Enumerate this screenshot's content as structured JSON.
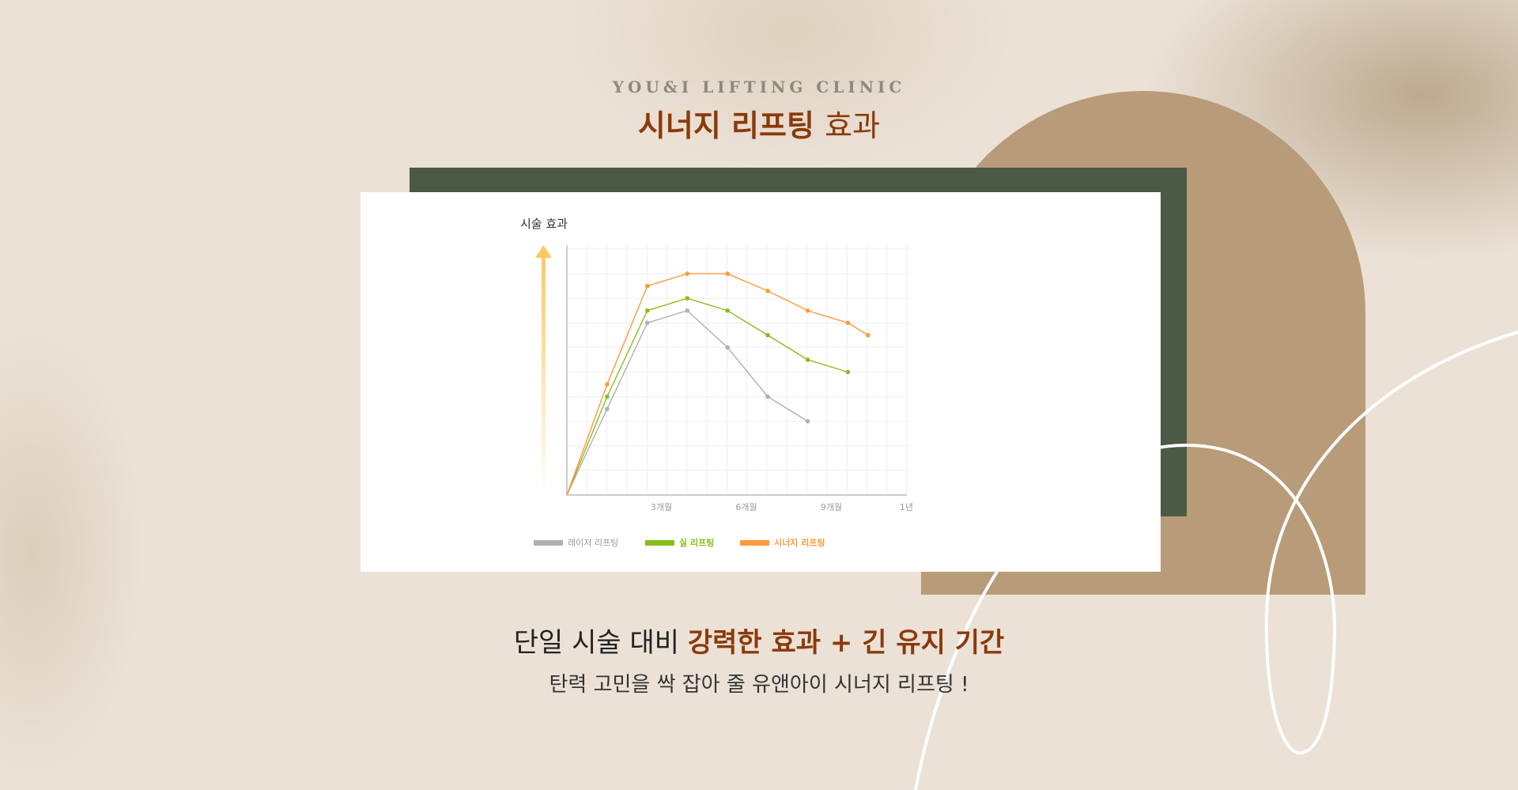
{
  "header": {
    "eyebrow": "YOU&I LIFTING CLINIC",
    "title_bold": "시너지 리프팅",
    "title_regular": "효과"
  },
  "colors": {
    "accent": "#8b3a0a",
    "green_panel": "#4b5a47",
    "tan_arch": "#b89b78",
    "background": "#ebe1d6"
  },
  "footer": {
    "headline_prefix": "단일 시술 대비 ",
    "headline_bold": "강력한 효과 + 긴 유지 기간",
    "subline": "탄력 고민을 싹 잡아 줄 유앤아이 시너지 리프팅 !"
  },
  "chart_data": {
    "type": "line",
    "ylabel": "시술 효과",
    "xlabel": "",
    "xlim": [
      0,
      12
    ],
    "ylim": [
      0,
      10
    ],
    "grid": true,
    "y_tick_labels": false,
    "x_ticks": [
      {
        "value": 3,
        "label": "3개월"
      },
      {
        "value": 6,
        "label": "6개월"
      },
      {
        "value": 9,
        "label": "9개월"
      },
      {
        "value": 12,
        "label": "1년"
      }
    ],
    "legend_position": "bottom",
    "series": [
      {
        "name": "레이저 리프팅",
        "color": "#b0b0b0",
        "x": [
          0,
          1.42,
          2.84,
          4.25,
          5.67,
          7.09,
          8.5
        ],
        "y": [
          0,
          3.5,
          7.0,
          7.5,
          6.0,
          4.0,
          3.0
        ]
      },
      {
        "name": "실 리프팅",
        "color": "#8bbd1e",
        "x": [
          0,
          1.42,
          2.84,
          4.25,
          5.67,
          7.09,
          8.5,
          9.92
        ],
        "y": [
          0,
          4.0,
          7.5,
          8.0,
          7.5,
          6.5,
          5.5,
          5.0
        ]
      },
      {
        "name": "시너지 리프팅",
        "color": "#ff9a3c",
        "x": [
          0,
          1.42,
          2.84,
          4.25,
          5.67,
          7.09,
          8.5,
          9.92,
          10.63
        ],
        "y": [
          0,
          4.5,
          8.5,
          9.0,
          9.0,
          8.3,
          7.5,
          7.0,
          6.5
        ]
      }
    ]
  }
}
